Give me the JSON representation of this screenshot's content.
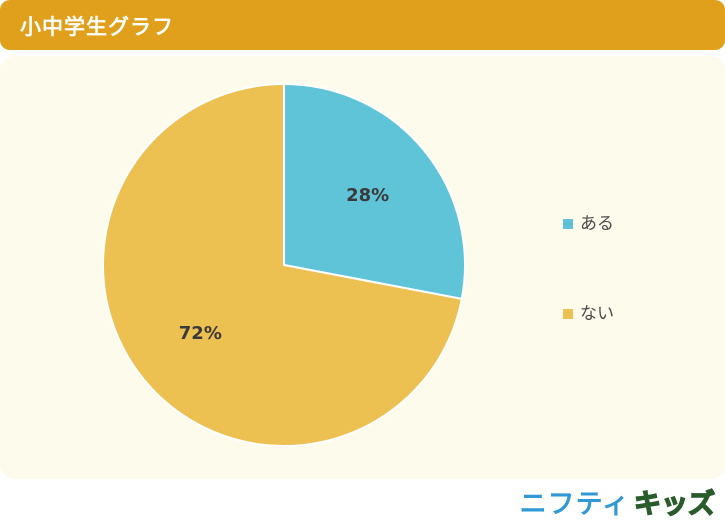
{
  "header": {
    "title": "小中学生グラフ"
  },
  "chart_data": {
    "type": "pie",
    "categories": [
      "ある",
      "ない"
    ],
    "values": [
      28,
      72
    ],
    "value_labels": [
      "28%",
      "72%"
    ],
    "colors": [
      "#5fc4d8",
      "#ecc051"
    ],
    "start_angle_deg": 0,
    "direction": "clockwise",
    "legend_position": "right"
  },
  "logo": {
    "text1": "ニフティ",
    "text2_chars": [
      "キ",
      "ッ",
      "ズ"
    ],
    "text2_colors": [
      "#f08a1c",
      "#7dc242",
      "#f08a1c"
    ]
  }
}
